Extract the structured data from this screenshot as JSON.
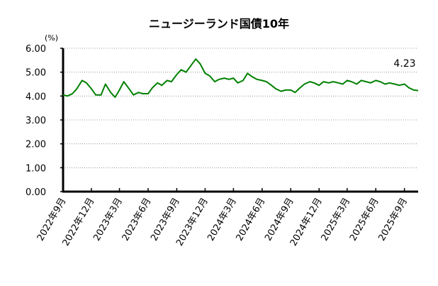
{
  "chart_data": {
    "type": "line",
    "title": "ニュージーランド国債10年",
    "ylabel": "(%)",
    "ylim": [
      0,
      6
    ],
    "yticks": [
      "0.00",
      "1.00",
      "2.00",
      "3.00",
      "4.00",
      "5.00",
      "6.00"
    ],
    "xticks": [
      "2022年9月",
      "2022年12月",
      "2023年3月",
      "2023年6月",
      "2023年9月",
      "2023年12月",
      "2024年3月",
      "2024年6月",
      "2024年9月",
      "2024年12月",
      "2025年3月",
      "2025年6月",
      "2025年9月"
    ],
    "grid": "horizontal-dotted",
    "last_value_label": "4.23",
    "series": [
      {
        "color": "#008000",
        "x": [
          "2022-09-01",
          "2022-09-15",
          "2022-10-01",
          "2022-10-15",
          "2022-11-01",
          "2022-11-15",
          "2022-12-01",
          "2022-12-15",
          "2023-01-01",
          "2023-01-15",
          "2023-02-01",
          "2023-02-15",
          "2023-03-01",
          "2023-03-15",
          "2023-04-01",
          "2023-04-15",
          "2023-05-01",
          "2023-05-15",
          "2023-06-01",
          "2023-06-15",
          "2023-07-01",
          "2023-07-15",
          "2023-08-01",
          "2023-08-15",
          "2023-09-01",
          "2023-09-15",
          "2023-10-01",
          "2023-10-15",
          "2023-11-01",
          "2023-11-15",
          "2023-12-01",
          "2023-12-15",
          "2024-01-01",
          "2024-01-15",
          "2024-02-01",
          "2024-02-15",
          "2024-03-01",
          "2024-03-15",
          "2024-04-01",
          "2024-04-15",
          "2024-05-01",
          "2024-05-15",
          "2024-06-01",
          "2024-06-15",
          "2024-07-01",
          "2024-07-15",
          "2024-08-01",
          "2024-08-15",
          "2024-09-01",
          "2024-09-15",
          "2024-10-01",
          "2024-10-15",
          "2024-11-01",
          "2024-11-15",
          "2024-12-01",
          "2024-12-15",
          "2025-01-01",
          "2025-01-15",
          "2025-02-01",
          "2025-02-15",
          "2025-03-01",
          "2025-03-15",
          "2025-04-01",
          "2025-04-15",
          "2025-05-01",
          "2025-05-15",
          "2025-06-01",
          "2025-06-15",
          "2025-07-01",
          "2025-07-15",
          "2025-08-01",
          "2025-08-15",
          "2025-09-01",
          "2025-09-15",
          "2025-10-01",
          "2025-10-15"
        ],
        "y": [
          4.05,
          4.0,
          4.1,
          4.3,
          4.65,
          4.55,
          4.3,
          4.05,
          4.05,
          4.5,
          4.15,
          3.95,
          4.25,
          4.6,
          4.3,
          4.05,
          4.15,
          4.1,
          4.1,
          4.35,
          4.55,
          4.45,
          4.65,
          4.6,
          4.9,
          5.1,
          5.0,
          5.25,
          5.55,
          5.35,
          4.95,
          4.85,
          4.6,
          4.7,
          4.75,
          4.7,
          4.75,
          4.55,
          4.65,
          4.95,
          4.8,
          4.7,
          4.65,
          4.6,
          4.45,
          4.3,
          4.2,
          4.25,
          4.25,
          4.15,
          4.35,
          4.5,
          4.6,
          4.55,
          4.45,
          4.6,
          4.55,
          4.6,
          4.55,
          4.5,
          4.65,
          4.6,
          4.5,
          4.65,
          4.6,
          4.55,
          4.65,
          4.6,
          4.5,
          4.55,
          4.5,
          4.45,
          4.5,
          4.35,
          4.25,
          4.23
        ]
      }
    ]
  }
}
